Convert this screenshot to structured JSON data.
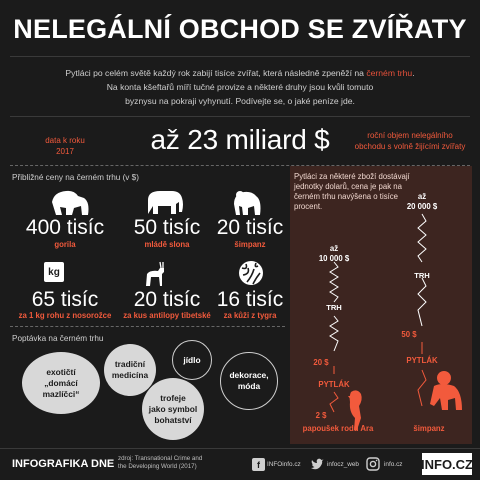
{
  "title": "NELEGÁLNÍ OBCHOD SE ZVÍŘATY",
  "intro": {
    "line1_before": "Pytláci po celém světě každý rok zabijí tisíce zvířat, která následně zpeněží na ",
    "line1_red": "černém trhu",
    "line1_after": ".",
    "line2": "Na konta kšeftařů míří tučné provize a některé druhy jsou kvůli tomuto",
    "line3": "byznysu na pokraji vyhynutí. Podívejte se, o jaké peníze jde."
  },
  "headline": {
    "left_note": "data k roku\n2017",
    "amount": "až 23 miliard $",
    "right_note": "roční objem nelegálního\nobchodu s volně žijícími zvířaty"
  },
  "prices": {
    "section_label": "Přibližné ceny na černém trhu (v $)",
    "items": [
      {
        "value": "400 tisíc",
        "caption": "gorila",
        "icon": "gorilla-icon"
      },
      {
        "value": "50 tisíc",
        "caption": "mládě slona",
        "icon": "elephant-icon"
      },
      {
        "value": "20 tisíc",
        "caption": "šimpanz",
        "icon": "chimpanzee-icon"
      },
      {
        "value": "65 tisíc",
        "caption": "za 1 kg rohu z nosorožce",
        "icon": "kg-weight-icon",
        "icon_text": "kg"
      },
      {
        "value": "20 tisíc",
        "caption": "za kus antilopy tibetské",
        "icon": "antelope-icon"
      },
      {
        "value": "16 tisíc",
        "caption": "za kůži z tygra",
        "icon": "tiger-skin-icon"
      }
    ]
  },
  "demand": {
    "section_label": "Poptávka na černém trhu",
    "bubbles": [
      "exotičtí\n„domácí\nmazlíčci“",
      "tradiční\nmedicína",
      "jídlo",
      "trofeje\njako symbol\nbohatství",
      "dekorace,\nmóda"
    ]
  },
  "chain": {
    "intro": "Pytláci za některé zboží dostávají jednotky dolarů, cena je pak na černém trhu navýšena o tisíce procent.",
    "parrot": {
      "top": "až\n10 000 $",
      "trh": "TRH",
      "mid": "20 $",
      "pytlak": "PYTLÁK",
      "bottom": "2 $",
      "caption": "papoušek rodu Ara",
      "icon": "parrot-icon"
    },
    "chimp": {
      "top": "až\n20 000 $",
      "trh": "TRH",
      "mid": "50 $",
      "pytlak": "PYTLÁK",
      "caption": "šimpanz",
      "icon": "chimpanzee-icon"
    }
  },
  "footer": {
    "label": "INFOGRAFIKA DNE",
    "source": "zdroj: Transnational Crime and\nthe Developing World (2017)",
    "facebook": "INFOinfo.cz",
    "twitter": "infocz_web",
    "instagram": "info.cz",
    "logo": "INFO.CZ"
  },
  "colors": {
    "background": "#1b1b1b",
    "accent": "#f25a3c",
    "panel": "#3d2520"
  }
}
